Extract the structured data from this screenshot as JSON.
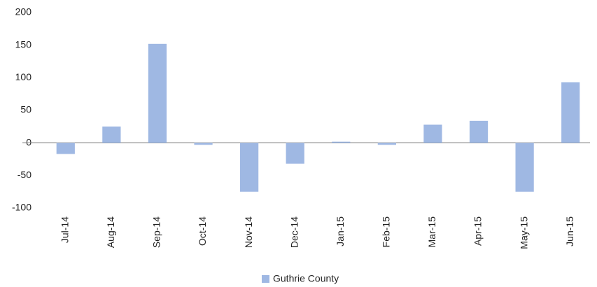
{
  "chart_data": {
    "type": "bar",
    "categories": [
      "Jul-14",
      "Aug-14",
      "Sep-14",
      "Oct-14",
      "Nov-14",
      "Dec-14",
      "Jan-15",
      "Feb-15",
      "Mar-15",
      "Apr-15",
      "May-15",
      "Jun-15"
    ],
    "series": [
      {
        "name": "Guthrie County",
        "color": "#9fb8e3",
        "values": [
          -17,
          25,
          152,
          -3,
          -75,
          -32,
          2,
          -3,
          28,
          34,
          -75,
          93
        ]
      }
    ],
    "ylim": [
      -100,
      200
    ],
    "yticks": [
      -100,
      -50,
      0,
      50,
      100,
      150,
      200
    ],
    "grid": false,
    "legend": "bottom"
  }
}
